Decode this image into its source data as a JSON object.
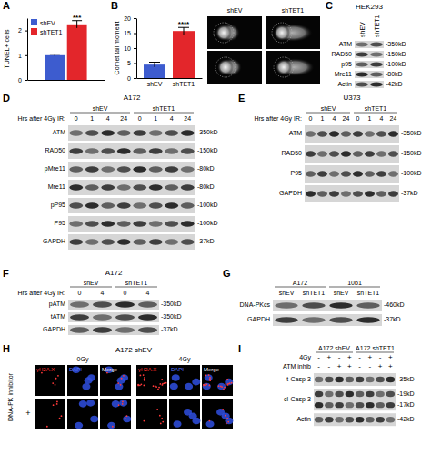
{
  "chart_data": [
    {
      "type": "bar",
      "panel_label": "A",
      "y_label": "TUNEL+ cells",
      "categories": [
        null
      ],
      "series": [
        {
          "name": "shEV",
          "color": "#3d5ccf",
          "values": [
            1.0
          ],
          "error": [
            0.04
          ]
        },
        {
          "name": "shTET1",
          "color": "#e3262b",
          "values": [
            2.25
          ],
          "error": [
            0.15
          ]
        }
      ],
      "ylim": [
        0,
        2.5
      ],
      "yticks": [
        0,
        1,
        2
      ],
      "legend": "upper left",
      "annotation": "***"
    },
    {
      "type": "bar",
      "panel_label": "B",
      "y_label": "Comet tail moment",
      "categories": [
        "shEV",
        "shTET1"
      ],
      "values": [
        4.5,
        15.7
      ],
      "error": [
        0.8,
        1.2
      ],
      "colors": [
        "#3d5ccf",
        "#e3262b"
      ],
      "ylim": [
        0,
        20
      ],
      "yticks": [
        0,
        5,
        10,
        15,
        20
      ],
      "annotation": "****"
    }
  ],
  "comet_images": {
    "columns": [
      "shEV",
      "shTET1"
    ]
  },
  "blots": [
    {
      "panel_label": "C",
      "title": "HEK293",
      "lanes": [
        "shEV",
        "shTET1"
      ],
      "rows": [
        {
          "protein": "ATM",
          "size": "-350kD"
        },
        {
          "protein": "RAD50",
          "size": "-150kD"
        },
        {
          "protein": "p95",
          "size": "-100kD"
        },
        {
          "protein": "Mre11",
          "size": "-80kD"
        },
        {
          "protein": "Actin",
          "size": "-42kD"
        }
      ]
    },
    {
      "panel_label": "D",
      "title": "A172",
      "lane_header": "Hrs after 4Gy IR:",
      "groups": [
        {
          "name": "shEV",
          "lanes": [
            0,
            1,
            4,
            24
          ]
        },
        {
          "name": "shTET1",
          "lanes": [
            0,
            1,
            4,
            24
          ]
        }
      ],
      "rows": [
        {
          "protein": "ATM",
          "size": "-350kD"
        },
        {
          "protein": "RAD50",
          "size": "-150kD"
        },
        {
          "protein": "pMre11",
          "size": "-80kD"
        },
        {
          "protein": "Mre11",
          "size": "-80kD"
        },
        {
          "protein": "pP95",
          "size": "-100kD"
        },
        {
          "protein": "P95",
          "size": "-100kD"
        },
        {
          "protein": "GAPDH",
          "size": "-37kD"
        }
      ]
    },
    {
      "panel_label": "E",
      "title": "U373",
      "lane_header": "Hrs after 4Gy IR:",
      "groups": [
        {
          "name": "shEV",
          "lanes": [
            0,
            1,
            4,
            24
          ]
        },
        {
          "name": "shTET1",
          "lanes": [
            0,
            1,
            4,
            24
          ]
        }
      ],
      "rows": [
        {
          "protein": "ATM",
          "size": "-350kD"
        },
        {
          "protein": "RAD50",
          "size": "-150kD"
        },
        {
          "protein": "P95",
          "size": "-100kD"
        },
        {
          "protein": "GAPDH",
          "size": "-37kD"
        }
      ]
    },
    {
      "panel_label": "F",
      "title": "A172",
      "lane_header": "Hrs after 4Gy IR:",
      "groups": [
        {
          "name": "shEV",
          "lanes": [
            0,
            4
          ]
        },
        {
          "name": "shTET1",
          "lanes": [
            0,
            4
          ]
        }
      ],
      "rows": [
        {
          "protein": "pATM",
          "size": "-350kD"
        },
        {
          "protein": "tATM",
          "size": "-350kD"
        },
        {
          "protein": "GAPDH",
          "size": "-37kD"
        }
      ]
    },
    {
      "panel_label": "G",
      "groups": [
        {
          "name": "A172",
          "lanes": [
            "shEV",
            "shTET1"
          ]
        },
        {
          "name": "10b1",
          "lanes": [
            "shEV",
            "shTET1"
          ]
        }
      ],
      "rows": [
        {
          "protein": "DNA-PKcs",
          "size": "-460kD"
        },
        {
          "protein": "GAPDH",
          "size": "-37kD"
        }
      ]
    },
    {
      "panel_label": "I",
      "groups": [
        {
          "name": "A172 shEV"
        },
        {
          "name": "A172 shTET1"
        }
      ],
      "conditions": [
        {
          "label": "4Gy",
          "marks": [
            "-",
            "+",
            "-",
            "+",
            "-",
            "+",
            "-",
            "+"
          ]
        },
        {
          "label": "ATM inhib",
          "marks": [
            "-",
            "-",
            "+",
            "+",
            "-",
            "-",
            "+",
            "+"
          ]
        }
      ],
      "rows": [
        {
          "protein": "t-Casp-3",
          "size": "-35kD"
        },
        {
          "protein": "cl-Casp-3",
          "sizes": [
            "-19kD",
            "-17kD"
          ]
        },
        {
          "protein": "Actin",
          "size": "-42kD"
        }
      ]
    }
  ],
  "microscopy": {
    "panel_label": "H",
    "title": "A172 shEV",
    "conditions": [
      "0Gy",
      "4Gy"
    ],
    "channels": [
      "γH2A.X",
      "DAPI",
      "Merge"
    ],
    "row_title": "DNA-PK inhibitor",
    "rows": [
      "-",
      "+"
    ]
  }
}
